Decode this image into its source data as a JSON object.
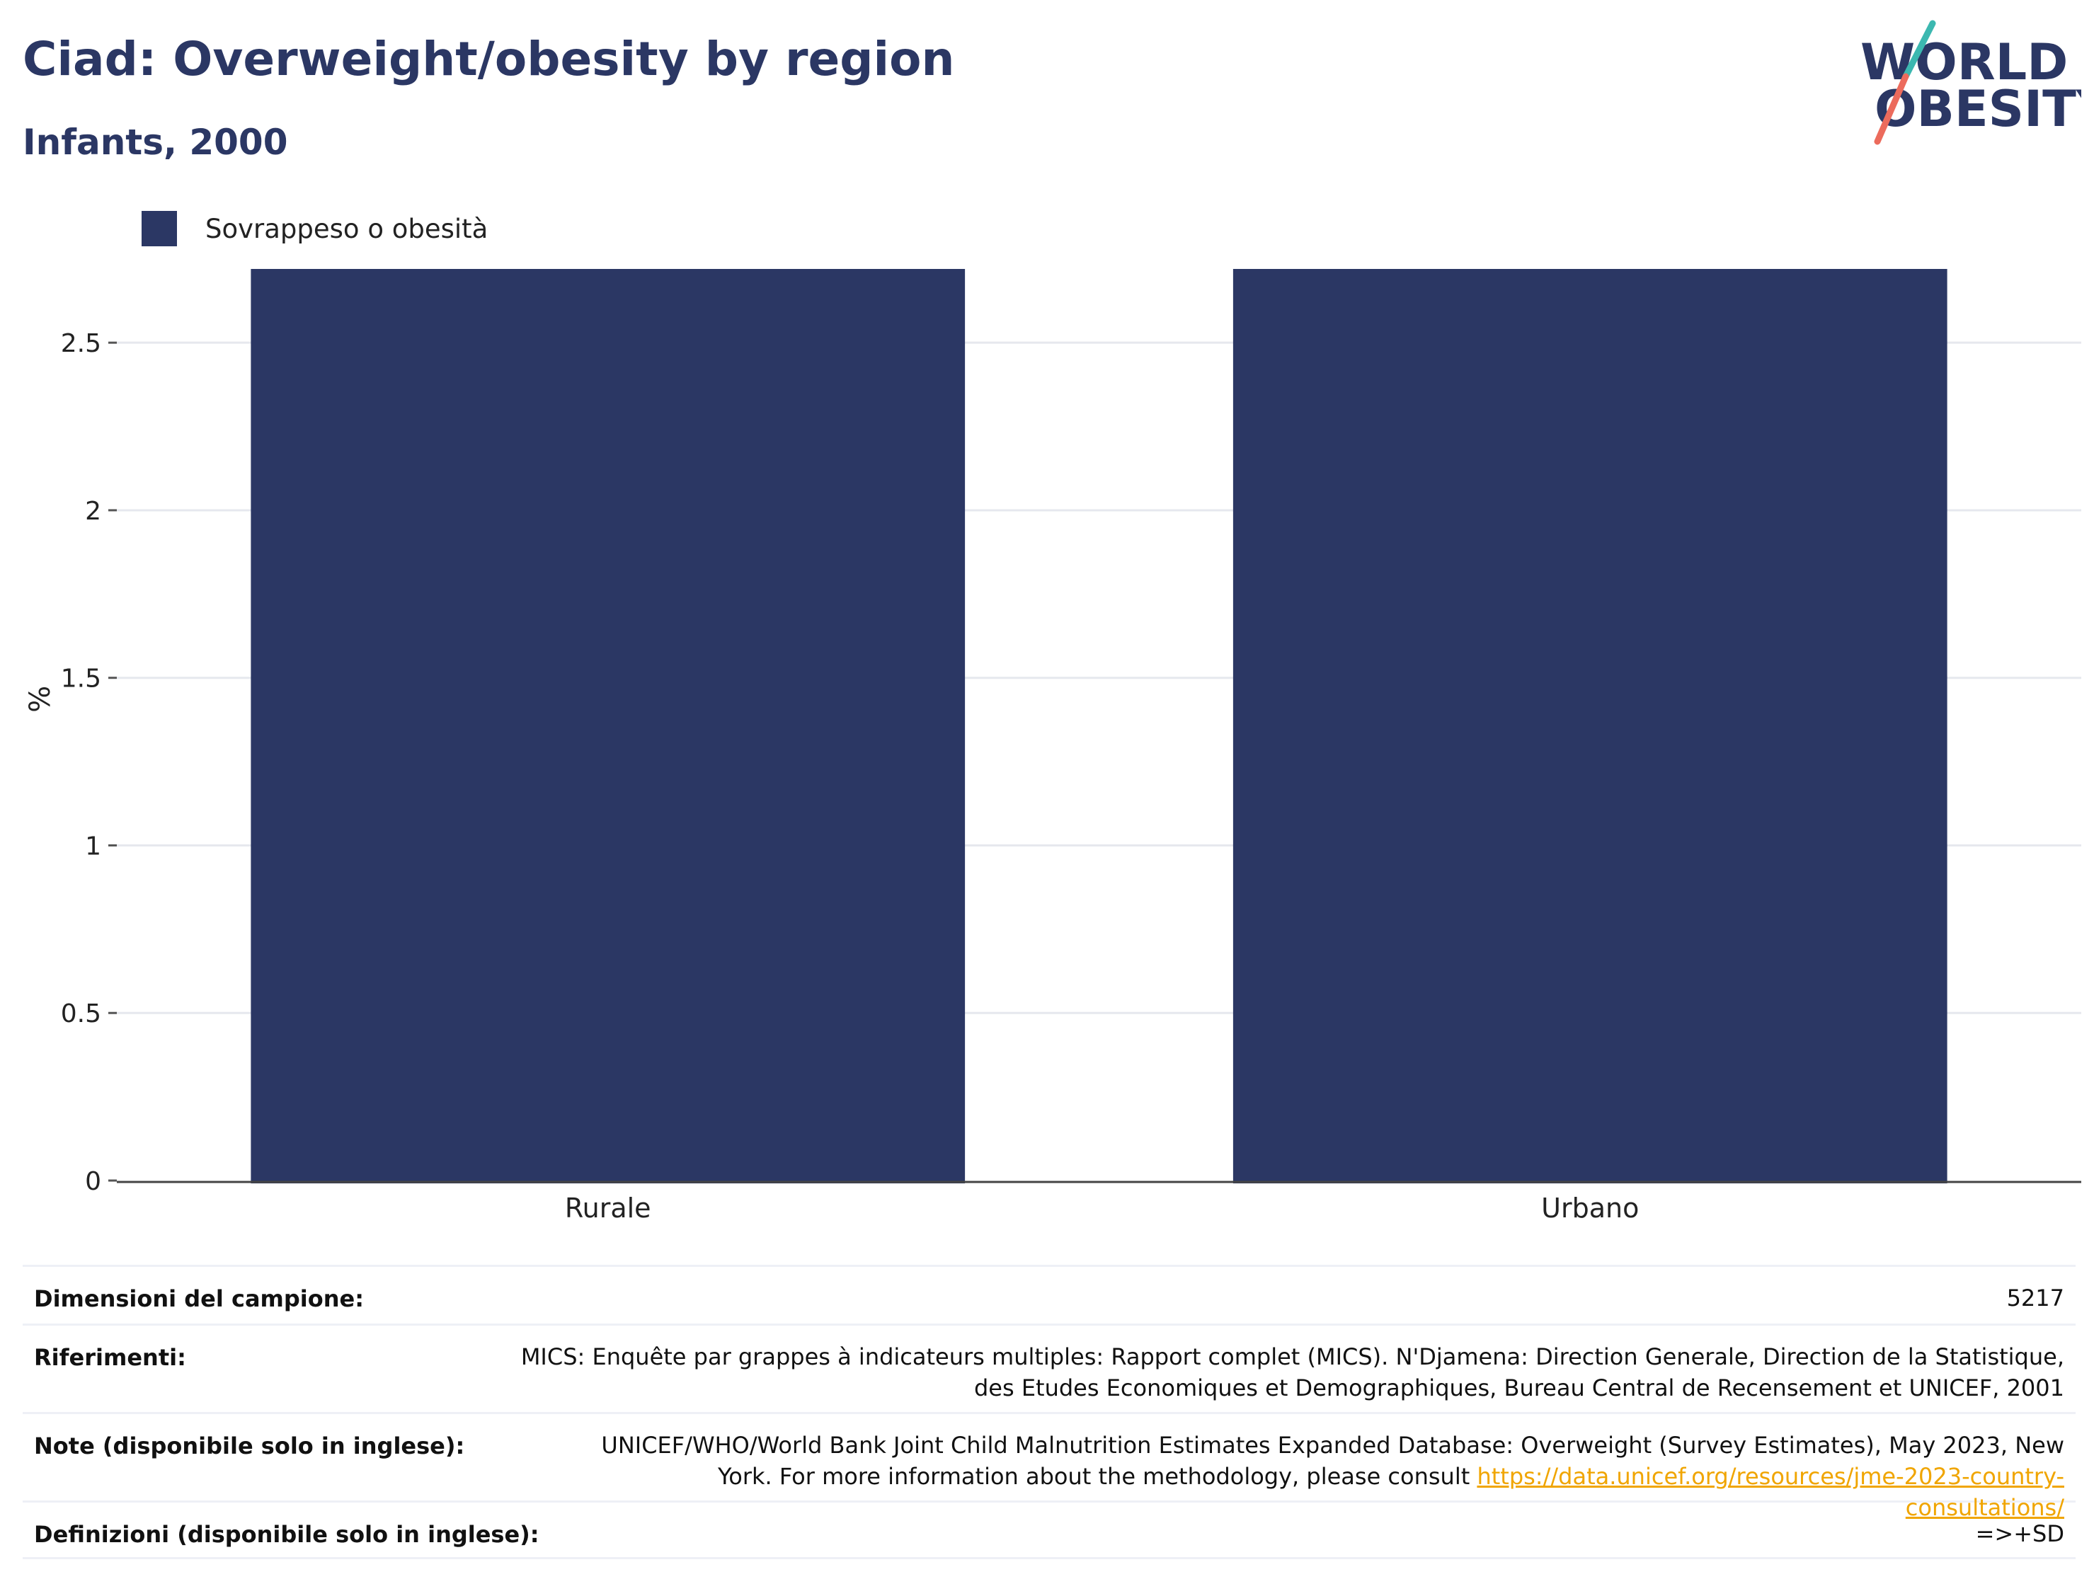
{
  "header": {
    "title": "Ciad: Overweight/obesity by region",
    "subtitle": "Infants, 2000"
  },
  "logo": {
    "line1": "WORLD",
    "line2": "OBESITY"
  },
  "legend": {
    "label": "Sovrappeso o obesità",
    "color": "#2b3764"
  },
  "chart_data": {
    "type": "bar",
    "categories": [
      "Rurale",
      "Urbano"
    ],
    "series": [
      {
        "name": "Sovrappeso o obesità",
        "values": [
          2.72,
          2.72
        ],
        "color": "#2b3764"
      }
    ],
    "ylabel": "%",
    "ylim": [
      0,
      2.72
    ],
    "yticks": [
      0,
      0.5,
      1,
      1.5,
      2,
      2.5
    ],
    "ytick_labels": [
      "0",
      "0.5",
      "1",
      "1.5",
      "2",
      "2.5"
    ],
    "grid": true,
    "legend_position": "top-left"
  },
  "info": {
    "sample_label": "Dimensioni del campione:",
    "sample_value": "5217",
    "refs_label": "Riferimenti:",
    "refs_value": "MICS: Enquête par grappes à indicateurs multiples: Rapport complet (MICS). N'Djamena: Direction Generale, Direction de la Statistique, des Etudes Economiques et Demographiques, Bureau Central de Recensement et UNICEF, 2001",
    "notes_label": "Note (disponibile solo in inglese):",
    "notes_text": "UNICEF/WHO/World Bank Joint Child Malnutrition Estimates Expanded Database: Overweight (Survey Estimates), May 2023, New York. For more information about the methodology, please consult ",
    "notes_link": "https://data.unicef.org/resources/jme-2023-country-consultations/",
    "defs_label": "Definizioni (disponibile solo in inglese):",
    "defs_value": "=>+SD"
  }
}
